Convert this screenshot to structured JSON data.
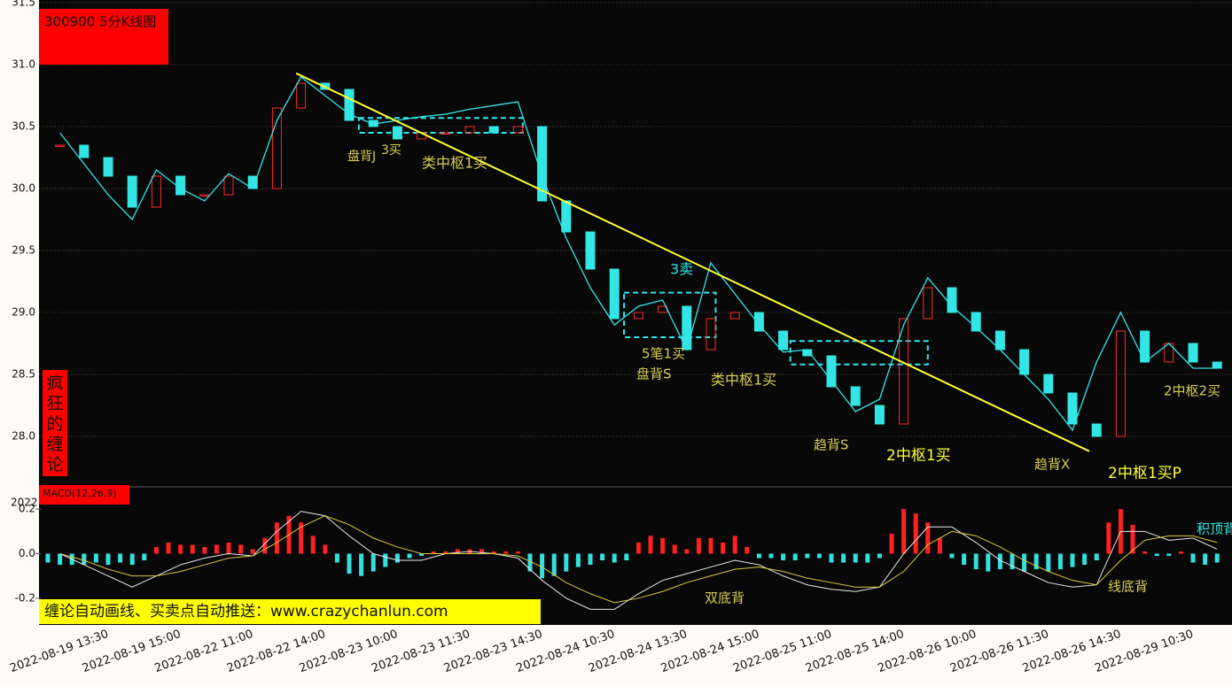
{
  "header_label": "300900 5分K线图",
  "vertical_label": "疯狂的缠论",
  "macd_label": "MACD(12,26,9)",
  "corner_text": "2022",
  "banner": "缠论自动画线、买卖点自动推送：www.crazychanlun.com",
  "chart_data": [
    {
      "type": "candlestick",
      "categories": [
        null,
        null,
        "2022-08-19 13:30",
        null,
        null,
        "2022-08-19 15:00",
        null,
        null,
        "2022-08-22 11:00",
        null,
        null,
        "2022-08-22 14:00",
        null,
        null,
        "2022-08-23 10:00",
        null,
        null,
        "2022-08-23 11:30",
        null,
        null,
        "2022-08-23 14:30",
        null,
        null,
        "2022-08-24 10:30",
        null,
        null,
        "2022-08-24 13:30",
        null,
        null,
        "2022-08-24 15:00",
        null,
        null,
        "2022-08-25 11:00",
        null,
        null,
        "2022-08-25 14:00",
        null,
        null,
        "2022-08-26 10:00",
        null,
        null,
        "2022-08-26 11:30",
        null,
        null,
        "2022-08-26 14:30",
        null,
        null,
        "2022-08-29 10:30",
        null
      ],
      "values": [
        30.35,
        30.25,
        30.1,
        29.85,
        30.1,
        29.95,
        29.95,
        30.1,
        30.0,
        30.65,
        30.85,
        30.8,
        30.55,
        30.5,
        30.4,
        30.45,
        30.45,
        30.5,
        30.45,
        30.5,
        29.9,
        29.65,
        29.35,
        28.95,
        29.0,
        29.05,
        28.7,
        28.95,
        29.0,
        28.85,
        28.7,
        28.65,
        28.4,
        28.25,
        28.1,
        28.95,
        29.2,
        29.0,
        28.85,
        28.7,
        28.5,
        28.35,
        28.1,
        28.0,
        28.85,
        28.6,
        28.75,
        28.6,
        28.55
      ],
      "up_color": "#ff2a2a",
      "down_color": "#33e6e6",
      "bi": {
        "color": "#33e6e6",
        "values": [
          30.45,
          30.2,
          29.95,
          29.75,
          30.15,
          30.0,
          29.9,
          30.12,
          30.0,
          30.55,
          30.9,
          30.75,
          30.6,
          30.52,
          30.55,
          30.58,
          30.6,
          30.64,
          30.67,
          30.7,
          30.1,
          29.6,
          29.2,
          28.9,
          29.05,
          29.1,
          28.7,
          29.4,
          29.15,
          28.9,
          28.68,
          28.7,
          28.45,
          28.2,
          28.3,
          28.9,
          29.28,
          29.05,
          28.88,
          28.7,
          28.5,
          28.3,
          28.05,
          28.6,
          29.0,
          28.6,
          28.75,
          28.55,
          28.55
        ]
      },
      "trend_line": {
        "color": "#ffff33",
        "index": [
          9.8,
          42.7
        ],
        "values": [
          30.93,
          27.88
        ]
      },
      "boxes": [
        {
          "from": 12.4,
          "to": 19.2,
          "low": 30.45,
          "high": 30.57
        },
        {
          "from": 23.4,
          "to": 27.2,
          "low": 28.8,
          "high": 29.16
        },
        {
          "from": 30.3,
          "to": 36.0,
          "low": 28.58,
          "high": 28.77
        }
      ],
      "box_color": "#33e6f0",
      "ylim": [
        27.6,
        31.5
      ],
      "yticks": [
        {
          "value": 28,
          "label": "28.0"
        },
        28.5,
        {
          "value": 29,
          "label": "29.0"
        },
        29.5,
        {
          "value": 30,
          "label": "30.0"
        },
        30.5,
        {
          "value": 31,
          "label": "31.0"
        },
        31.5
      ],
      "grid": true,
      "annotations": [
        {
          "text": "盘背J",
          "color": "#d8cc55"
        },
        {
          "text": "3买",
          "color": "#d8cc55"
        },
        {
          "text": "类中枢1买",
          "color": "#d8cc55"
        },
        {
          "text": "3卖",
          "color": "#33e6e6"
        },
        {
          "text": "5笔1买",
          "color": "#d8cc55"
        },
        {
          "text": "盘背S",
          "color": "#d8cc55"
        },
        {
          "text": "类中枢1买",
          "color": "#d8cc55"
        },
        {
          "text": "趋背S",
          "color": "#d8cc55"
        },
        {
          "text": "2中枢1买",
          "color": "#ffff33"
        },
        {
          "text": "趋背X",
          "color": "#d8cc55"
        },
        {
          "text": "2中枢1买P",
          "color": "#ffff33"
        },
        {
          "text": "2中枢2买",
          "color": "#d8cc55"
        }
      ]
    },
    {
      "type": "macd",
      "values": [
        -0.04,
        -0.05,
        -0.05,
        -0.05,
        -0.04,
        -0.05,
        -0.04,
        -0.05,
        -0.03,
        0.03,
        0.05,
        0.04,
        0.04,
        0.03,
        0.04,
        0.05,
        0.04,
        0.02,
        0.07,
        0.14,
        0.17,
        0.14,
        0.08,
        0.04,
        -0.04,
        -0.09,
        -0.1,
        -0.08,
        -0.06,
        -0.04,
        -0.02,
        -0.01,
        0.01,
        0.01,
        0.02,
        0.02,
        0.02,
        0.01,
        0.01,
        0.01,
        -0.08,
        -0.11,
        -0.1,
        -0.08,
        -0.06,
        -0.05,
        -0.03,
        -0.04,
        -0.03,
        0.05,
        0.08,
        0.07,
        0.04,
        0.02,
        0.07,
        0.07,
        0.05,
        0.08,
        0.03,
        -0.02,
        -0.02,
        -0.03,
        -0.03,
        -0.02,
        -0.02,
        -0.04,
        -0.04,
        -0.04,
        -0.04,
        -0.02,
        0.09,
        0.2,
        0.18,
        0.14,
        0.07,
        -0.02,
        -0.05,
        -0.07,
        -0.08,
        -0.07,
        -0.07,
        -0.08,
        -0.07,
        -0.08,
        -0.07,
        -0.06,
        -0.05,
        -0.03,
        0.14,
        0.2,
        0.13,
        0.01,
        -0.01,
        -0.01,
        0.01,
        -0.04,
        -0.05,
        -0.04
      ],
      "up_color": "#ff2020",
      "down_color": "#33e0e0",
      "lines": [
        {
          "color": "#e8e8e8",
          "values": [
            0.0,
            -0.05,
            -0.1,
            -0.15,
            -0.1,
            -0.05,
            -0.02,
            0.0,
            -0.01,
            0.1,
            0.19,
            0.17,
            0.08,
            0.0,
            -0.03,
            -0.03,
            0.0,
            0.01,
            0.0,
            -0.02,
            -0.12,
            -0.2,
            -0.25,
            -0.25,
            -0.18,
            -0.12,
            -0.09,
            -0.06,
            -0.03,
            -0.05,
            -0.1,
            -0.14,
            -0.16,
            -0.17,
            -0.15,
            0.0,
            0.12,
            0.12,
            0.05,
            -0.03,
            -0.08,
            -0.13,
            -0.15,
            -0.14,
            0.1,
            0.1,
            0.06,
            0.07,
            0.02
          ]
        },
        {
          "color": "#d8c840",
          "values": [
            0.0,
            -0.03,
            -0.07,
            -0.1,
            -0.1,
            -0.08,
            -0.05,
            -0.02,
            -0.01,
            0.05,
            0.12,
            0.17,
            0.13,
            0.07,
            0.03,
            0.0,
            0.0,
            0.0,
            0.0,
            -0.01,
            -0.06,
            -0.13,
            -0.18,
            -0.22,
            -0.2,
            -0.17,
            -0.13,
            -0.1,
            -0.07,
            -0.06,
            -0.08,
            -0.11,
            -0.13,
            -0.15,
            -0.15,
            -0.08,
            0.04,
            0.1,
            0.08,
            0.03,
            -0.03,
            -0.08,
            -0.12,
            -0.14,
            -0.03,
            0.06,
            0.08,
            0.08,
            0.05
          ]
        }
      ],
      "ylim": [
        -0.32,
        0.3
      ],
      "yticks": [
        -0.2,
        {
          "value": 0,
          "label": "0.0"
        },
        0.2
      ],
      "annotations": [
        {
          "text": "双底背",
          "color": "#d8cc55"
        },
        {
          "text": "线底背",
          "color": "#d8cc55"
        },
        {
          "text": "积顶背",
          "color": "#33e6e6"
        }
      ]
    }
  ]
}
